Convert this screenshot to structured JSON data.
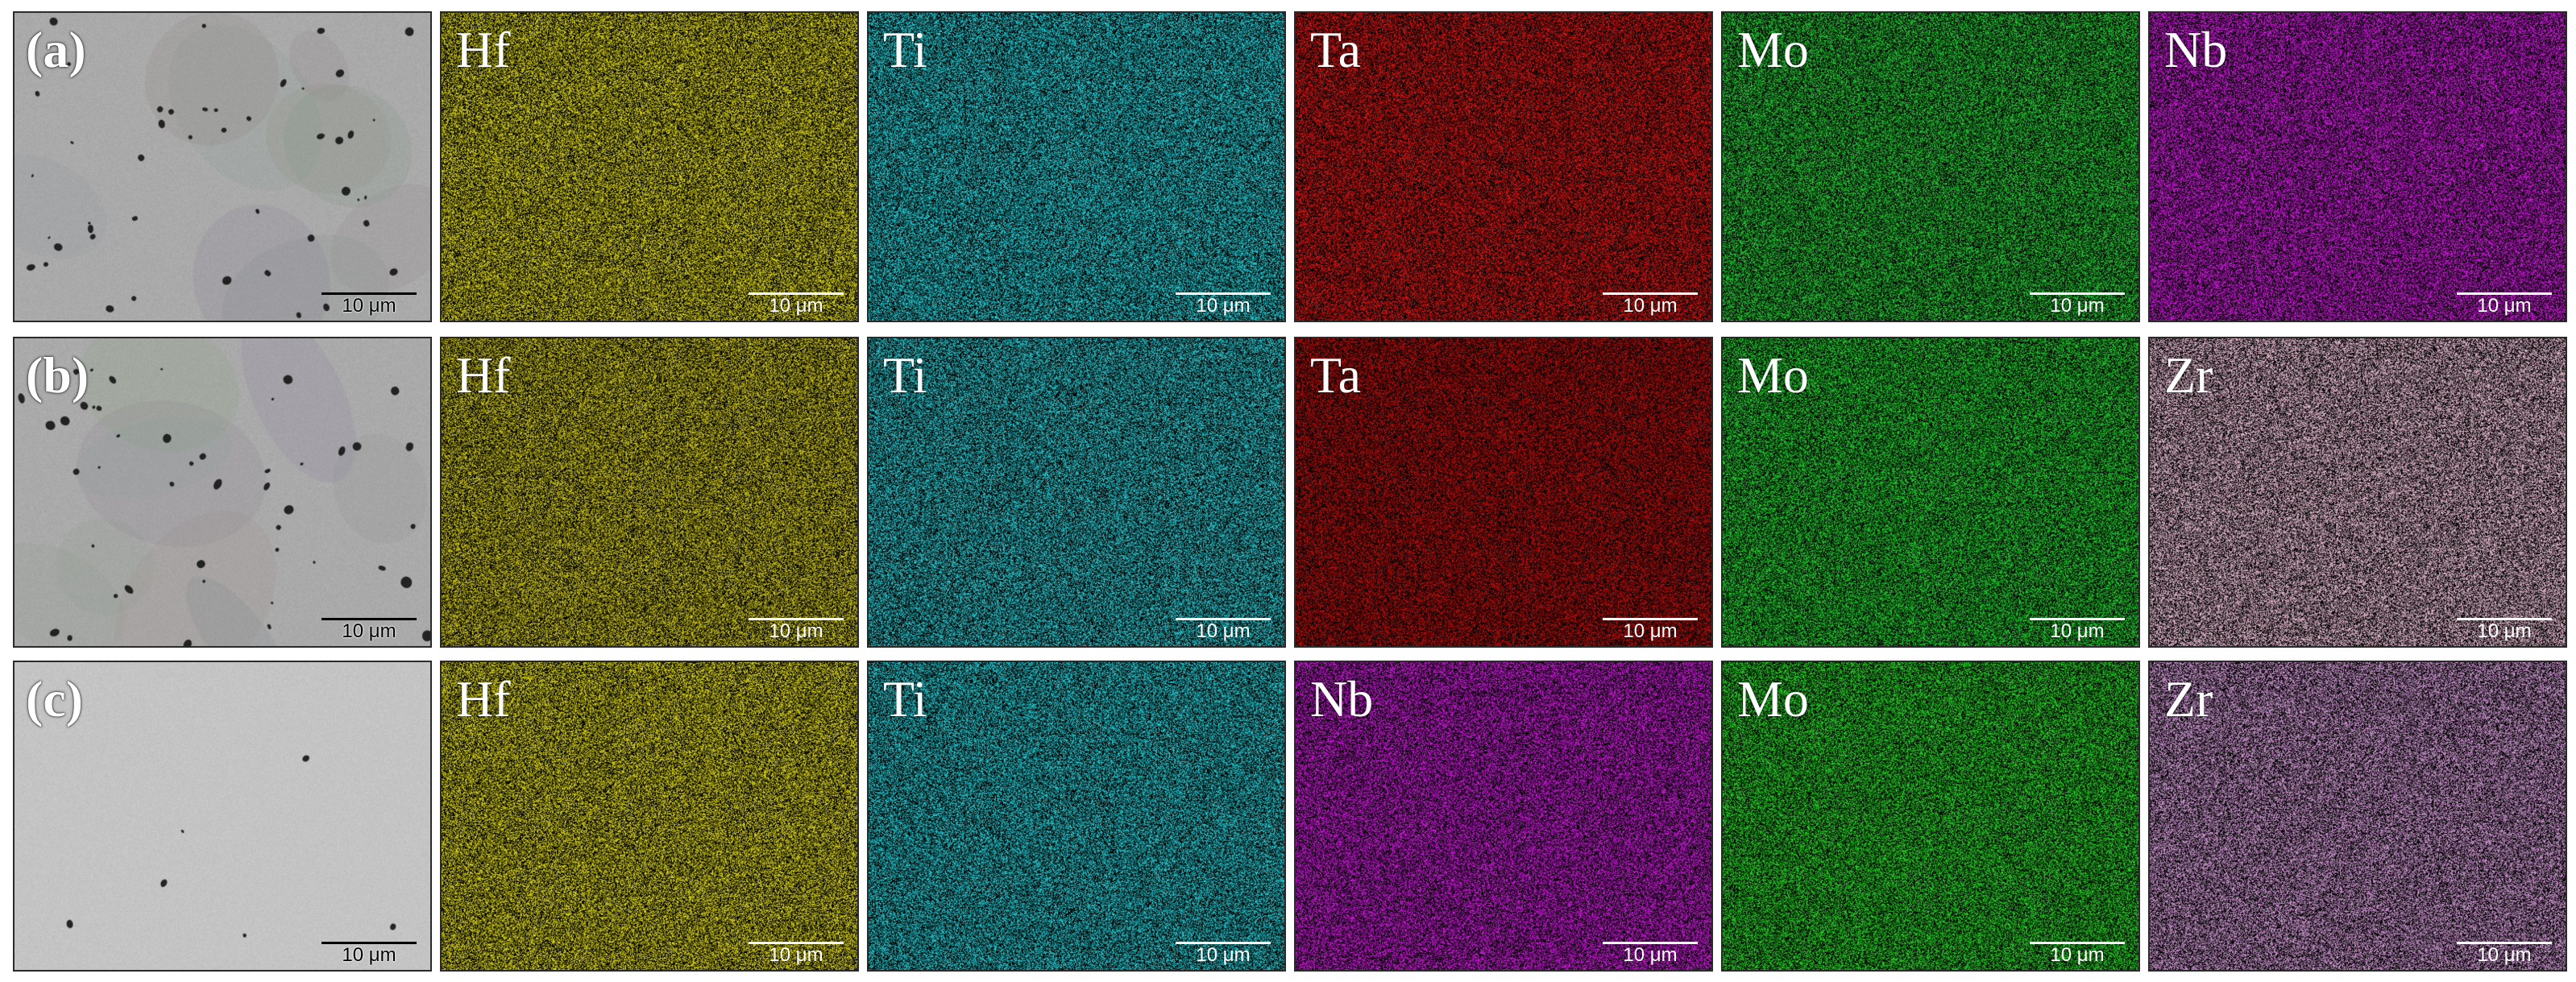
{
  "scale_text": "10 μm",
  "rows": [
    {
      "label": "(a)",
      "maps": [
        {
          "element": "Hf",
          "color": "#e6e020"
        },
        {
          "element": "Ti",
          "color": "#29d8e0"
        },
        {
          "element": "Ta",
          "color": "#e01818"
        },
        {
          "element": "Mo",
          "color": "#29d23a"
        },
        {
          "element": "Nb",
          "color": "#d81ee6"
        }
      ]
    },
    {
      "label": "(b)",
      "maps": [
        {
          "element": "Hf",
          "color": "#d8d020"
        },
        {
          "element": "Ti",
          "color": "#2fd0d8"
        },
        {
          "element": "Ta",
          "color": "#c01010"
        },
        {
          "element": "Mo",
          "color": "#26d834"
        },
        {
          "element": "Zr",
          "color": "#f2c6dc"
        }
      ]
    },
    {
      "label": "(c)",
      "maps": [
        {
          "element": "Hf",
          "color": "#e6e020"
        },
        {
          "element": "Ti",
          "color": "#29d2da"
        },
        {
          "element": "Nb",
          "color": "#d21ee0"
        },
        {
          "element": "Mo",
          "color": "#2cdc2c"
        },
        {
          "element": "Zr",
          "color": "#d8a0dc"
        }
      ]
    }
  ]
}
